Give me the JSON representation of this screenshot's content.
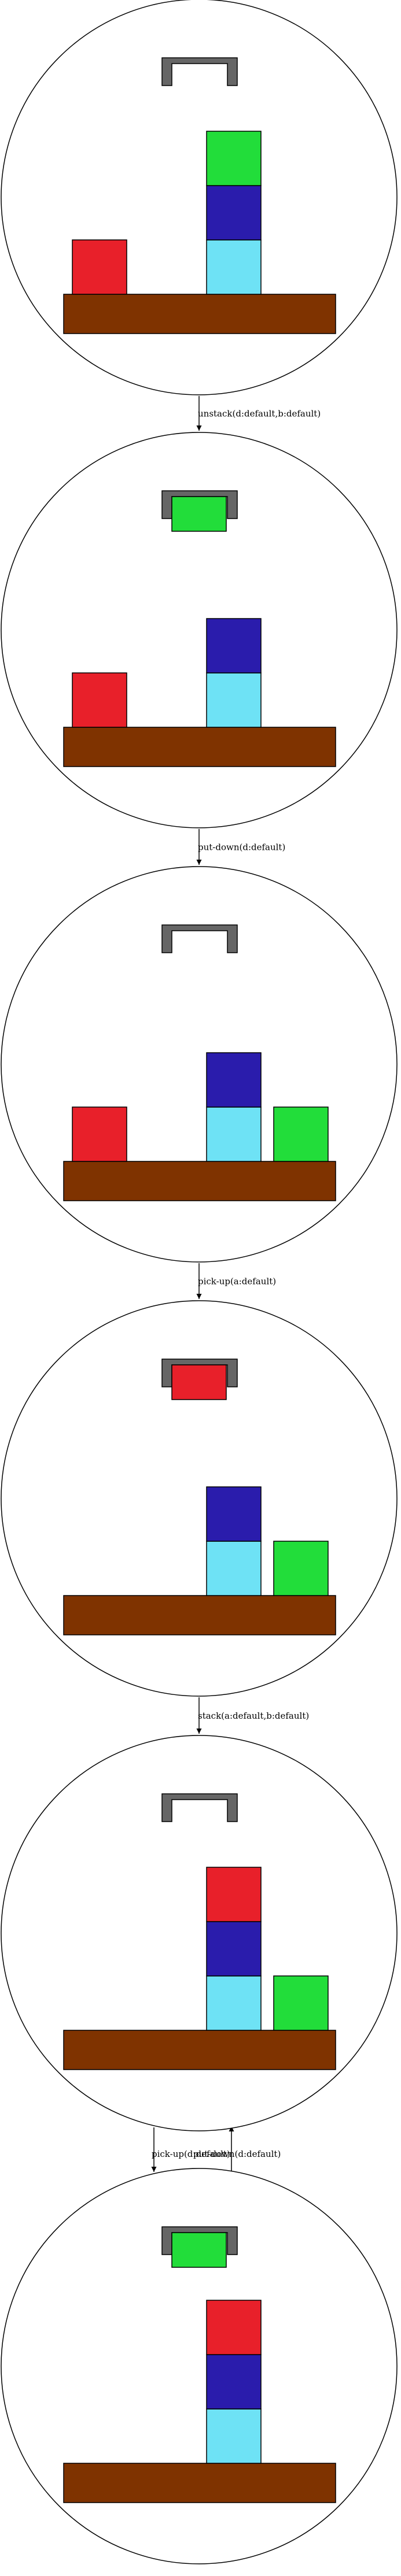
{
  "colors": {
    "table": "#7f3300",
    "gripper": "#666666",
    "outline": "#000000",
    "background": "#ffffff"
  },
  "blocks": {
    "a": {
      "color": "#e8202a"
    },
    "b": {
      "color": "#2a1cac"
    },
    "c": {
      "color": "#6ee2f5"
    },
    "d": {
      "color": "#22dd3a"
    }
  },
  "states": [
    {
      "id": "s1",
      "holding": null,
      "stacks": [
        [
          "a"
        ],
        [
          "c",
          "b",
          "d"
        ]
      ]
    },
    {
      "id": "s2",
      "holding": "d",
      "stacks": [
        [
          "a"
        ],
        [
          "c",
          "b"
        ]
      ]
    },
    {
      "id": "s3",
      "holding": null,
      "stacks": [
        [
          "a"
        ],
        [
          "c",
          "b"
        ],
        [
          "d"
        ]
      ]
    },
    {
      "id": "s4",
      "holding": "a",
      "stacks": [
        [],
        [
          "c",
          "b"
        ],
        [
          "d"
        ]
      ]
    },
    {
      "id": "s5",
      "holding": null,
      "stacks": [
        [],
        [
          "c",
          "b",
          "a"
        ],
        [
          "d"
        ]
      ]
    },
    {
      "id": "s6",
      "holding": "d",
      "stacks": [
        [],
        [
          "c",
          "b",
          "a"
        ]
      ]
    }
  ],
  "edges": [
    {
      "from": "s1",
      "to": "s2",
      "label": "unstack(d:default,b:default)"
    },
    {
      "from": "s2",
      "to": "s3",
      "label": "put-down(d:default)"
    },
    {
      "from": "s3",
      "to": "s4",
      "label": "pick-up(a:default)"
    },
    {
      "from": "s4",
      "to": "s5",
      "label": "stack(a:default,b:default)"
    },
    {
      "from": "s5",
      "to": "s6",
      "label": "pick-up(d:default)"
    },
    {
      "from": "s6",
      "to": "s5",
      "label": "put-down(d:default)"
    }
  ]
}
